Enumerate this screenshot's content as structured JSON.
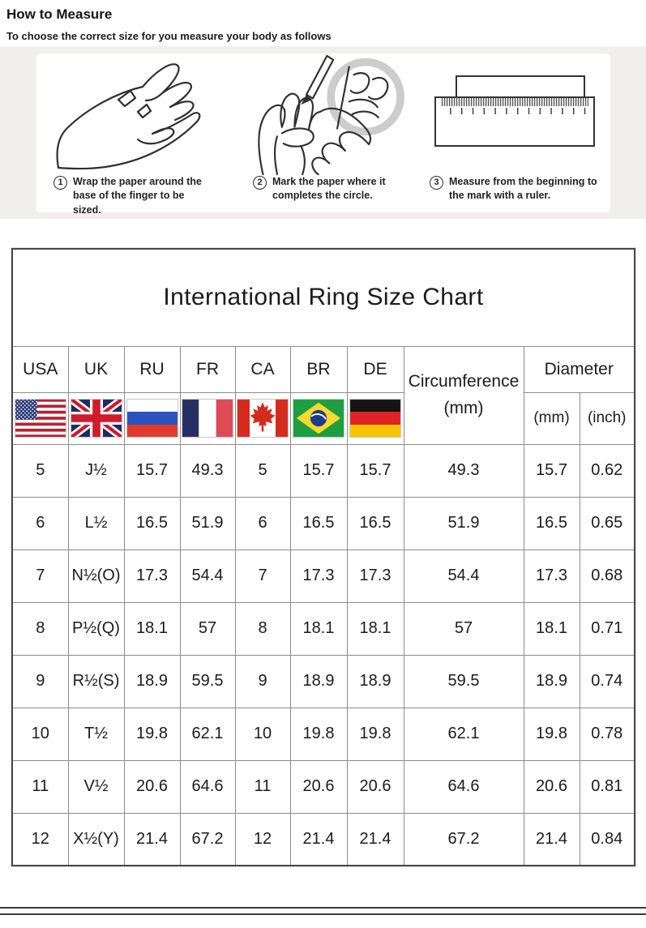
{
  "page": {
    "title": "How to Measure",
    "subtitle": "To choose the correct size for you measure your body as follows"
  },
  "steps": [
    {
      "number": "1",
      "caption": "Wrap the paper around the base of the finger to be sized.",
      "icon": "hand-wrap-illustration"
    },
    {
      "number": "2",
      "caption": "Mark the paper where it completes the circle.",
      "icon": "mark-paper-illustration"
    },
    {
      "number": "3",
      "caption": "Measure from the beginning to the mark with a ruler.",
      "icon": "ruler-illustration"
    }
  ],
  "table": {
    "title": "International Ring Size Chart",
    "country_columns": [
      {
        "code": "USA",
        "flag": "usa-flag-icon"
      },
      {
        "code": "UK",
        "flag": "uk-flag-icon"
      },
      {
        "code": "RU",
        "flag": "russia-flag-icon"
      },
      {
        "code": "FR",
        "flag": "france-flag-icon"
      },
      {
        "code": "CA",
        "flag": "canada-flag-icon"
      },
      {
        "code": "BR",
        "flag": "brazil-flag-icon"
      },
      {
        "code": "DE",
        "flag": "germany-flag-icon"
      }
    ],
    "circumference_label": "Circumference",
    "circumference_unit": "(mm)",
    "diameter_label": "Diameter",
    "diameter_mm_label": "(mm)",
    "diameter_inch_label": "(inch)"
  },
  "chart_data": {
    "type": "table",
    "title": "International Ring Size Chart",
    "columns": [
      "USA",
      "UK",
      "RU",
      "FR",
      "CA",
      "BR",
      "DE",
      "Circumference (mm)",
      "Diameter (mm)",
      "Diameter (inch)"
    ],
    "rows": [
      [
        "5",
        "J½",
        "15.7",
        "49.3",
        "5",
        "15.7",
        "15.7",
        "49.3",
        "15.7",
        "0.62"
      ],
      [
        "6",
        "L½",
        "16.5",
        "51.9",
        "6",
        "16.5",
        "16.5",
        "51.9",
        "16.5",
        "0.65"
      ],
      [
        "7",
        "N½(O)",
        "17.3",
        "54.4",
        "7",
        "17.3",
        "17.3",
        "54.4",
        "17.3",
        "0.68"
      ],
      [
        "8",
        "P½(Q)",
        "18.1",
        "57",
        "8",
        "18.1",
        "18.1",
        "57",
        "18.1",
        "0.71"
      ],
      [
        "9",
        "R½(S)",
        "18.9",
        "59.5",
        "9",
        "18.9",
        "18.9",
        "59.5",
        "18.9",
        "0.74"
      ],
      [
        "10",
        "T½",
        "19.8",
        "62.1",
        "10",
        "19.8",
        "19.8",
        "62.1",
        "19.8",
        "0.78"
      ],
      [
        "11",
        "V½",
        "20.6",
        "64.6",
        "11",
        "20.6",
        "20.6",
        "64.6",
        "20.6",
        "0.81"
      ],
      [
        "12",
        "X½(Y)",
        "21.4",
        "67.2",
        "12",
        "21.4",
        "21.4",
        "67.2",
        "21.4",
        "0.84"
      ]
    ]
  },
  "colors": {
    "band_background": "#f0efed",
    "table_border": "#8c8c8c",
    "table_outer_border": "#474747",
    "text": "#1b1b1b"
  }
}
